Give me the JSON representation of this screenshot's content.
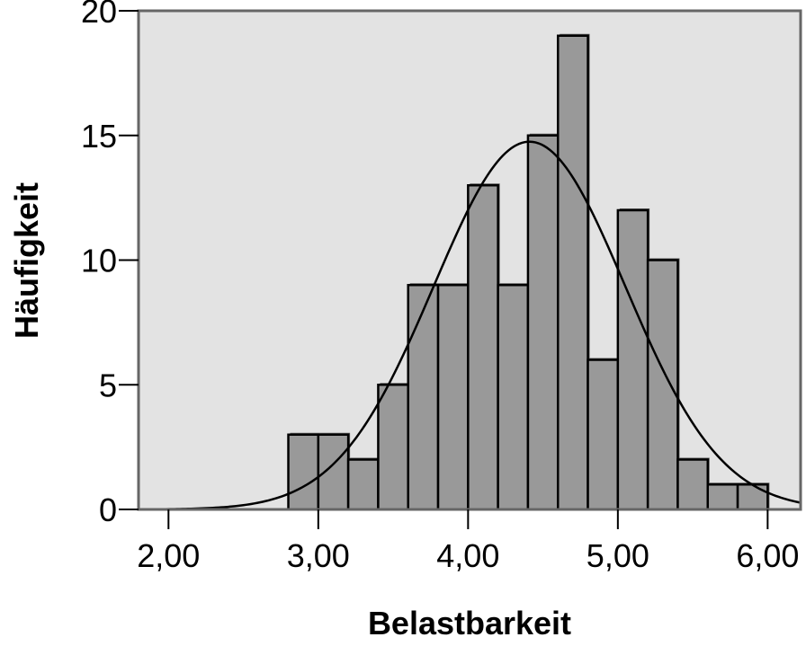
{
  "chart_data": {
    "type": "bar",
    "subtype": "histogram with normal distribution curve",
    "title": "",
    "xlabel": "Belastbarkeit",
    "ylabel": "Häufigkeit",
    "xlim": [
      1.8,
      6.22
    ],
    "ylim": [
      0,
      20
    ],
    "xticks": [
      2.0,
      3.0,
      4.0,
      5.0,
      6.0
    ],
    "xtick_labels": [
      "2,00",
      "3,00",
      "4,00",
      "5,00",
      "6,00"
    ],
    "yticks": [
      0,
      5,
      10,
      15,
      20
    ],
    "ytick_labels": [
      "0",
      "5",
      "10",
      "15",
      "20"
    ],
    "bin_width": 0.2,
    "bins": [
      {
        "x0": 2.8,
        "x1": 3.0,
        "count": 3
      },
      {
        "x0": 3.0,
        "x1": 3.2,
        "count": 3
      },
      {
        "x0": 3.2,
        "x1": 3.4,
        "count": 2
      },
      {
        "x0": 3.4,
        "x1": 3.6,
        "count": 5
      },
      {
        "x0": 3.6,
        "x1": 3.8,
        "count": 9
      },
      {
        "x0": 3.8,
        "x1": 4.0,
        "count": 9
      },
      {
        "x0": 4.0,
        "x1": 4.2,
        "count": 13
      },
      {
        "x0": 4.2,
        "x1": 4.4,
        "count": 9
      },
      {
        "x0": 4.4,
        "x1": 4.6,
        "count": 15
      },
      {
        "x0": 4.6,
        "x1": 4.8,
        "count": 19
      },
      {
        "x0": 4.8,
        "x1": 5.0,
        "count": 6
      },
      {
        "x0": 5.0,
        "x1": 5.2,
        "count": 12
      },
      {
        "x0": 5.2,
        "x1": 5.4,
        "count": 10
      },
      {
        "x0": 5.4,
        "x1": 5.6,
        "count": 2
      },
      {
        "x0": 5.6,
        "x1": 5.8,
        "count": 1
      },
      {
        "x0": 5.8,
        "x1": 6.0,
        "count": 1
      }
    ],
    "normal_curve": {
      "mean": 4.41,
      "sd": 0.64,
      "peak": 14.75
    },
    "grid": false,
    "legend": "none",
    "colors": {
      "plot_background": "#e3e3e3",
      "bar_fill": "#999999",
      "bar_edge": "#000000",
      "curve": "#000000",
      "frame": "#666666"
    }
  }
}
